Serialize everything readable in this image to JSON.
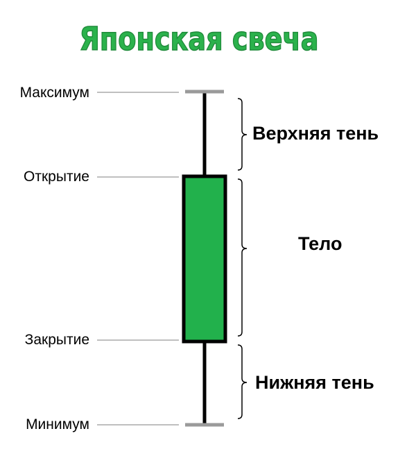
{
  "title": "Японская свеча",
  "colors": {
    "title": "#2bb24c",
    "body_fill": "#22b14c",
    "outline": "#000000",
    "guide_line": "#aaaaaa",
    "cap": "#9a9a9a",
    "text": "#000000"
  },
  "levels": [
    {
      "key": "high",
      "label": "Максимум"
    },
    {
      "key": "open",
      "label": "Открытие"
    },
    {
      "key": "close",
      "label": "Закрытие"
    },
    {
      "key": "low",
      "label": "Минимум"
    }
  ],
  "parts": {
    "upper_shadow": "Верхняя тень",
    "body": "Тело",
    "lower_shadow": "Нижняя тень"
  }
}
